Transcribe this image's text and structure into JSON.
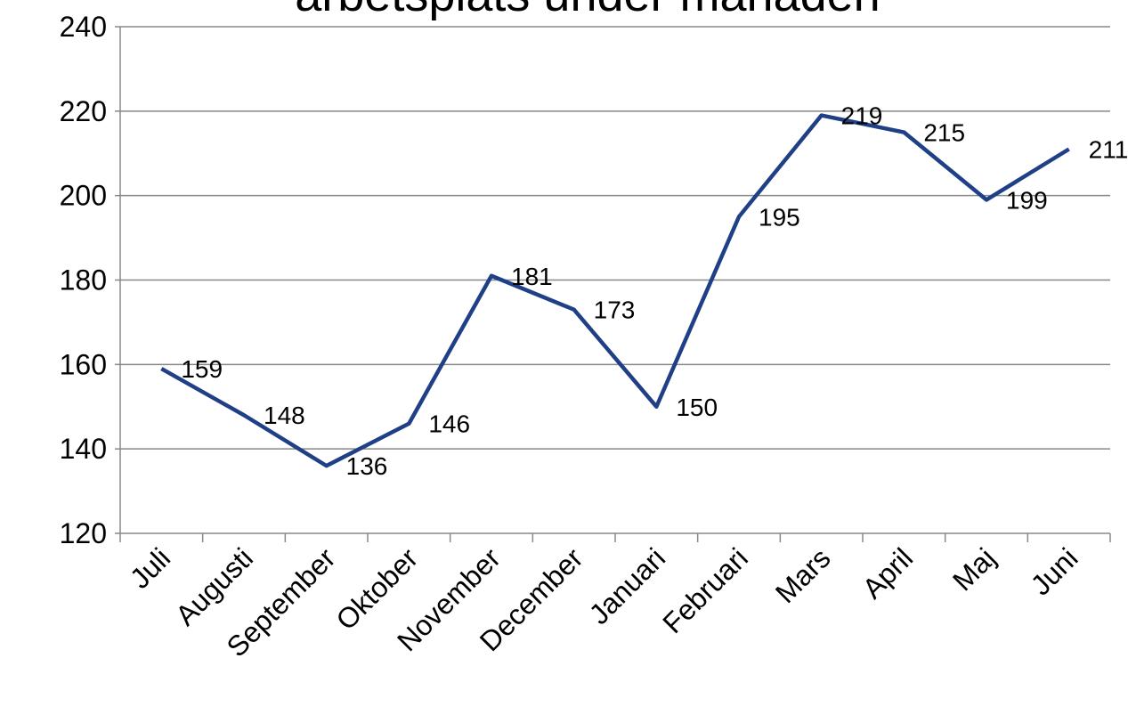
{
  "chart_data": {
    "type": "line",
    "title": "arbetsplats under månaden",
    "categories": [
      "Juli",
      "Augusti",
      "September",
      "Oktober",
      "November",
      "December",
      "Januari",
      "Februari",
      "Mars",
      "April",
      "Maj",
      "Juni"
    ],
    "values": [
      159,
      148,
      136,
      146,
      181,
      173,
      150,
      195,
      219,
      215,
      199,
      211
    ],
    "color": "#1f3f86",
    "ylim": [
      120,
      240
    ],
    "yticks": [
      120,
      140,
      160,
      180,
      200,
      220,
      240
    ],
    "grid": true
  }
}
